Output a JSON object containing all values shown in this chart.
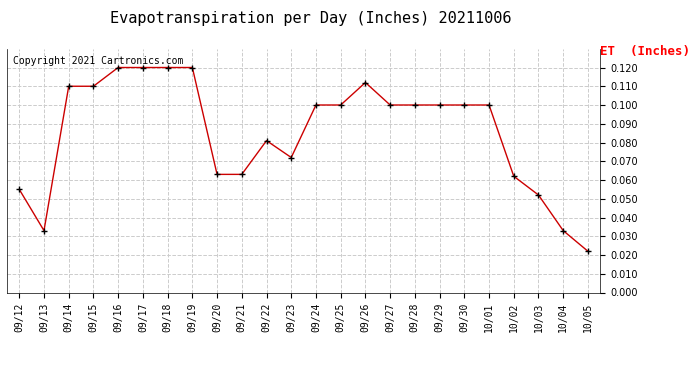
{
  "title": "Evapotranspiration per Day (Inches) 20211006",
  "copyright_text": "Copyright 2021 Cartronics.com",
  "legend_text": "ET  (Inches)",
  "dates": [
    "09/12",
    "09/13",
    "09/14",
    "09/15",
    "09/16",
    "09/17",
    "09/18",
    "09/19",
    "09/20",
    "09/21",
    "09/22",
    "09/23",
    "09/24",
    "09/25",
    "09/26",
    "09/27",
    "09/28",
    "09/29",
    "09/30",
    "10/01",
    "10/02",
    "10/03",
    "10/04",
    "10/05"
  ],
  "values": [
    0.055,
    0.033,
    0.11,
    0.11,
    0.12,
    0.12,
    0.12,
    0.12,
    0.063,
    0.063,
    0.081,
    0.072,
    0.1,
    0.1,
    0.112,
    0.1,
    0.1,
    0.1,
    0.1,
    0.1,
    0.062,
    0.052,
    0.033,
    0.022
  ],
  "line_color": "#cc0000",
  "marker_color": "#000000",
  "background_color": "#ffffff",
  "grid_color": "#cccccc",
  "ylim": [
    0.0,
    0.13
  ],
  "yticks": [
    0.0,
    0.01,
    0.02,
    0.03,
    0.04,
    0.05,
    0.06,
    0.07,
    0.08,
    0.09,
    0.1,
    0.11,
    0.12
  ],
  "title_fontsize": 11,
  "copyright_fontsize": 7,
  "legend_fontsize": 9,
  "tick_fontsize": 7
}
